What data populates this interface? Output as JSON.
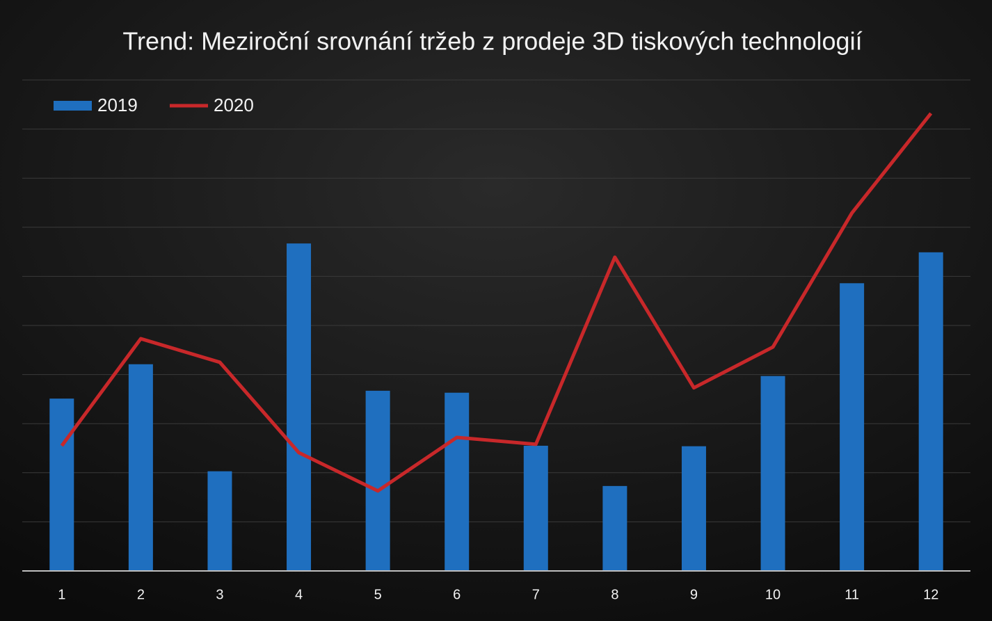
{
  "chart_data": {
    "type": "bar_line",
    "title": "Trend: Meziroční srovnání tržeb z prodeje 3D tiskových technologií",
    "categories": [
      "1",
      "2",
      "3",
      "4",
      "5",
      "6",
      "7",
      "8",
      "9",
      "10",
      "11",
      "12"
    ],
    "series": [
      {
        "name": "2019",
        "type": "bar",
        "color": "#1f6fbf",
        "values": [
          3.51,
          4.21,
          2.03,
          6.67,
          3.67,
          3.63,
          2.55,
          1.73,
          2.54,
          3.97,
          5.86,
          6.49
        ]
      },
      {
        "name": "2020",
        "type": "line",
        "color": "#c8282a",
        "values": [
          2.55,
          4.73,
          4.25,
          2.41,
          1.63,
          2.72,
          2.58,
          6.39,
          3.73,
          4.56,
          7.29,
          9.32
        ]
      }
    ],
    "ylim": [
      0,
      10
    ],
    "yticks": [
      1,
      2,
      3,
      4,
      5,
      6,
      7,
      8,
      9,
      10
    ],
    "grid": true,
    "legend": "top-left"
  }
}
